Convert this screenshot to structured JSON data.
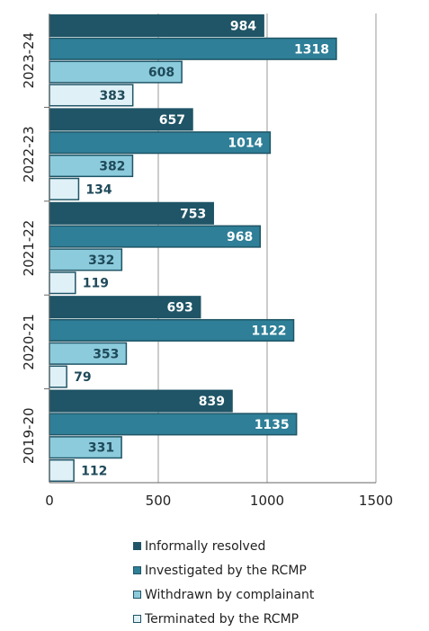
{
  "chart_data": {
    "type": "bar",
    "orientation": "horizontal",
    "categories": [
      "2023-24",
      "2022-23",
      "2021-22",
      "2020-21",
      "2019-20"
    ],
    "series": [
      {
        "name": "Informally resolved",
        "values": [
          984,
          657,
          753,
          693,
          839
        ],
        "color": "#1f5566",
        "label_color": "#ffffff"
      },
      {
        "name": "Investigated by the RCMP",
        "values": [
          1318,
          1014,
          968,
          1122,
          1135
        ],
        "color": "#2e7f97",
        "label_color": "#ffffff"
      },
      {
        "name": "Withdrawn by complainant",
        "values": [
          608,
          382,
          332,
          353,
          331
        ],
        "color": "#8ccbdc",
        "label_color": "#1f4a5a"
      },
      {
        "name": "Terminated by the RCMP",
        "values": [
          383,
          134,
          119,
          79,
          112
        ],
        "color": "#dff1f7",
        "label_color": "#1f4a5a"
      }
    ],
    "xlim": [
      0,
      1500
    ],
    "xticks": [
      0,
      500,
      1000,
      1500
    ],
    "grid": true,
    "legend_position": "bottom"
  }
}
